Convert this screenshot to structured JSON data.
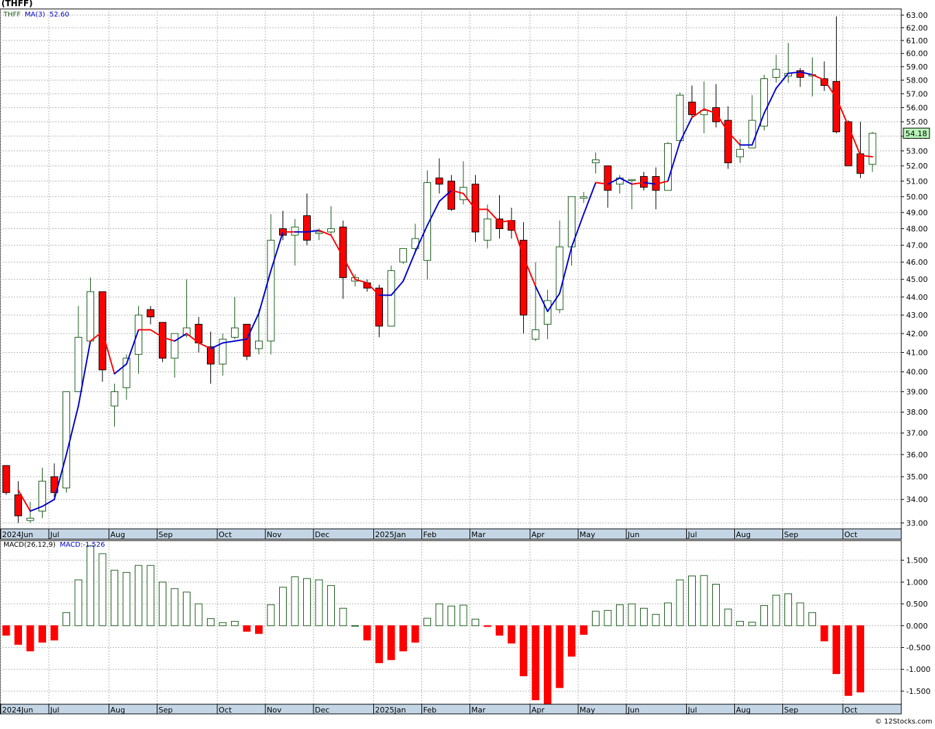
{
  "title": "(THFF)",
  "credit": "© 12Stocks.com",
  "price_label": "54.18",
  "colors": {
    "up": "#1a5c1a",
    "down": "#ff0000",
    "ma_up": "#0000cc",
    "ma_down": "#ff0000",
    "grid": "#b4b4b4",
    "axis_band": "#c4d6e6",
    "price_box": "#b8f5b8"
  },
  "chart_data": [
    {
      "type": "candlestick",
      "legend": {
        "symbol": "THFF",
        "ma_label": "MA(3)",
        "ma_value": "52.60"
      },
      "y_ticks": [
        "63.00",
        "62.00",
        "61.00",
        "60.00",
        "59.00",
        "58.00",
        "57.00",
        "56.00",
        "55.00",
        "54.00",
        "53.00",
        "52.00",
        "51.00",
        "50.00",
        "49.00",
        "48.00",
        "47.00",
        "46.00",
        "45.00",
        "44.00",
        "43.00",
        "42.00",
        "41.00",
        "40.00",
        "39.00",
        "38.00",
        "37.00",
        "36.00",
        "35.00",
        "34.00",
        "33.00"
      ],
      "y_scale": "log",
      "ylim": [
        32.75,
        63.5
      ],
      "x_labels": [
        {
          "label": "2024Jun",
          "week": 0
        },
        {
          "label": "Jul",
          "week": 4
        },
        {
          "label": "Aug",
          "week": 9
        },
        {
          "label": "Sep",
          "week": 13
        },
        {
          "label": "Oct",
          "week": 18
        },
        {
          "label": "Nov",
          "week": 22
        },
        {
          "label": "Dec",
          "week": 26
        },
        {
          "label": "2025Jan",
          "week": 31
        },
        {
          "label": "Feb",
          "week": 35
        },
        {
          "label": "Mar",
          "week": 39
        },
        {
          "label": "Apr",
          "week": 44
        },
        {
          "label": "May",
          "week": 48
        },
        {
          "label": "Jun",
          "week": 52
        },
        {
          "label": "Jul",
          "week": 57
        },
        {
          "label": "Aug",
          "week": 61
        },
        {
          "label": "Sep",
          "week": 65
        },
        {
          "label": "Oct",
          "week": 70
        }
      ],
      "candles": [
        {
          "o": 35.5,
          "h": 35.5,
          "l": 34.2,
          "c": 34.3
        },
        {
          "o": 34.2,
          "h": 34.8,
          "l": 33.0,
          "c": 33.3
        },
        {
          "o": 33.1,
          "h": 33.9,
          "l": 33.0,
          "c": 33.2
        },
        {
          "o": 33.5,
          "h": 35.4,
          "l": 33.2,
          "c": 34.8
        },
        {
          "o": 35.0,
          "h": 35.6,
          "l": 34.1,
          "c": 34.3
        },
        {
          "o": 34.5,
          "h": 39.0,
          "l": 34.3,
          "c": 39.0
        },
        {
          "o": 39.0,
          "h": 43.5,
          "l": 39.0,
          "c": 41.8
        },
        {
          "o": 41.6,
          "h": 45.1,
          "l": 41.5,
          "c": 44.3
        },
        {
          "o": 44.3,
          "h": 44.3,
          "l": 39.5,
          "c": 40.1
        },
        {
          "o": 38.3,
          "h": 39.4,
          "l": 37.3,
          "c": 39.0
        },
        {
          "o": 39.2,
          "h": 40.9,
          "l": 38.6,
          "c": 40.7
        },
        {
          "o": 40.9,
          "h": 43.5,
          "l": 39.9,
          "c": 43.0
        },
        {
          "o": 43.3,
          "h": 43.5,
          "l": 42.5,
          "c": 42.9
        },
        {
          "o": 42.6,
          "h": 42.6,
          "l": 40.5,
          "c": 40.7
        },
        {
          "o": 40.7,
          "h": 42.0,
          "l": 39.7,
          "c": 42.0
        },
        {
          "o": 41.9,
          "h": 45.0,
          "l": 41.8,
          "c": 42.3
        },
        {
          "o": 42.5,
          "h": 42.9,
          "l": 41.0,
          "c": 41.5
        },
        {
          "o": 41.3,
          "h": 42.1,
          "l": 39.4,
          "c": 40.4
        },
        {
          "o": 40.4,
          "h": 42.0,
          "l": 39.8,
          "c": 41.7
        },
        {
          "o": 41.8,
          "h": 44.0,
          "l": 41.7,
          "c": 42.3
        },
        {
          "o": 42.5,
          "h": 42.5,
          "l": 40.6,
          "c": 40.8
        },
        {
          "o": 41.2,
          "h": 43.3,
          "l": 40.9,
          "c": 41.6
        },
        {
          "o": 41.6,
          "h": 48.9,
          "l": 40.9,
          "c": 47.3
        },
        {
          "o": 48.0,
          "h": 49.1,
          "l": 47.3,
          "c": 47.6
        },
        {
          "o": 47.6,
          "h": 48.6,
          "l": 45.8,
          "c": 48.1
        },
        {
          "o": 48.8,
          "h": 50.2,
          "l": 47.0,
          "c": 47.3
        },
        {
          "o": 47.7,
          "h": 48.0,
          "l": 47.3,
          "c": 47.8
        },
        {
          "o": 47.8,
          "h": 49.4,
          "l": 47.6,
          "c": 48.0
        },
        {
          "o": 48.1,
          "h": 48.5,
          "l": 43.9,
          "c": 45.1
        },
        {
          "o": 44.9,
          "h": 45.3,
          "l": 44.6,
          "c": 45.1
        },
        {
          "o": 44.8,
          "h": 45.0,
          "l": 44.3,
          "c": 44.5
        },
        {
          "o": 44.5,
          "h": 44.7,
          "l": 41.8,
          "c": 42.4
        },
        {
          "o": 42.4,
          "h": 45.8,
          "l": 42.4,
          "c": 45.5
        },
        {
          "o": 46.0,
          "h": 46.8,
          "l": 45.9,
          "c": 46.8
        },
        {
          "o": 46.8,
          "h": 48.3,
          "l": 46.5,
          "c": 47.4
        },
        {
          "o": 46.1,
          "h": 51.7,
          "l": 45.0,
          "c": 50.9
        },
        {
          "o": 51.2,
          "h": 52.5,
          "l": 50.2,
          "c": 50.8
        },
        {
          "o": 51.0,
          "h": 51.4,
          "l": 49.1,
          "c": 49.2
        },
        {
          "o": 49.8,
          "h": 52.3,
          "l": 49.5,
          "c": 50.6
        },
        {
          "o": 50.8,
          "h": 51.4,
          "l": 47.2,
          "c": 47.8
        },
        {
          "o": 47.3,
          "h": 49.5,
          "l": 46.8,
          "c": 48.6
        },
        {
          "o": 48.6,
          "h": 50.1,
          "l": 47.4,
          "c": 48.0
        },
        {
          "o": 48.5,
          "h": 49.3,
          "l": 47.4,
          "c": 47.9
        },
        {
          "o": 47.3,
          "h": 48.4,
          "l": 42.0,
          "c": 43.0
        },
        {
          "o": 41.7,
          "h": 46.0,
          "l": 41.6,
          "c": 42.2
        },
        {
          "o": 42.5,
          "h": 44.4,
          "l": 41.7,
          "c": 43.8
        },
        {
          "o": 43.3,
          "h": 48.5,
          "l": 43.1,
          "c": 46.9
        },
        {
          "o": 46.9,
          "h": 49.8,
          "l": 45.8,
          "c": 50.0
        },
        {
          "o": 49.9,
          "h": 50.3,
          "l": 49.6,
          "c": 50.0
        },
        {
          "o": 52.2,
          "h": 52.9,
          "l": 51.5,
          "c": 52.4
        },
        {
          "o": 52.0,
          "h": 52.0,
          "l": 49.3,
          "c": 50.4
        },
        {
          "o": 50.8,
          "h": 51.4,
          "l": 50.2,
          "c": 51.2
        },
        {
          "o": 51.1,
          "h": 51.0,
          "l": 49.2,
          "c": 51.1
        },
        {
          "o": 51.3,
          "h": 51.6,
          "l": 50.4,
          "c": 50.6
        },
        {
          "o": 51.3,
          "h": 51.9,
          "l": 49.2,
          "c": 50.4
        },
        {
          "o": 50.4,
          "h": 53.6,
          "l": 50.4,
          "c": 53.5
        },
        {
          "o": 53.7,
          "h": 57.1,
          "l": 53.5,
          "c": 56.9
        },
        {
          "o": 56.4,
          "h": 57.6,
          "l": 55.3,
          "c": 55.5
        },
        {
          "o": 55.5,
          "h": 57.9,
          "l": 54.2,
          "c": 55.8
        },
        {
          "o": 56.0,
          "h": 57.7,
          "l": 54.6,
          "c": 55.0
        },
        {
          "o": 55.1,
          "h": 56.1,
          "l": 51.8,
          "c": 52.2
        },
        {
          "o": 52.6,
          "h": 53.8,
          "l": 52.2,
          "c": 53.1
        },
        {
          "o": 53.2,
          "h": 56.9,
          "l": 53.2,
          "c": 55.1
        },
        {
          "o": 54.7,
          "h": 58.4,
          "l": 54.4,
          "c": 58.1
        },
        {
          "o": 58.2,
          "h": 59.9,
          "l": 57.8,
          "c": 58.8
        },
        {
          "o": 58.3,
          "h": 60.8,
          "l": 57.8,
          "c": 58.5
        },
        {
          "o": 58.7,
          "h": 58.9,
          "l": 57.5,
          "c": 58.2
        },
        {
          "o": 58.3,
          "h": 59.7,
          "l": 56.8,
          "c": 58.4
        },
        {
          "o": 58.1,
          "h": 59.4,
          "l": 57.2,
          "c": 57.6
        },
        {
          "o": 57.9,
          "h": 62.9,
          "l": 54.2,
          "c": 54.3
        },
        {
          "o": 55.0,
          "h": 55.1,
          "l": 52.1,
          "c": 52.0
        },
        {
          "o": 52.8,
          "h": 55.0,
          "l": 51.2,
          "c": 51.5
        },
        {
          "o": 52.1,
          "h": 54.3,
          "l": 51.6,
          "c": 54.2
        }
      ],
      "ma_start_week": 1,
      "ma": [
        34.4,
        33.5,
        33.7,
        34.0,
        36.0,
        38.3,
        41.6,
        42.1,
        39.9,
        40.4,
        42.2,
        42.2,
        41.8,
        41.6,
        42.0,
        41.5,
        41.2,
        41.5,
        41.6,
        41.7,
        43.1,
        45.5,
        47.8,
        47.8,
        47.8,
        47.9,
        47.6,
        46.3,
        45.0,
        44.8,
        44.1,
        44.1,
        44.9,
        46.6,
        48.2,
        49.7,
        50.4,
        50.2,
        49.2,
        49.2,
        48.4,
        48.5,
        46.3,
        44.6,
        43.2,
        44.2,
        46.9,
        48.9,
        50.9,
        50.8,
        51.2,
        50.8,
        50.9,
        50.8,
        51.0,
        53.6,
        55.3,
        55.9,
        55.6,
        54.3,
        53.4,
        53.4,
        55.6,
        57.4,
        58.5,
        58.6,
        58.4,
        58.0,
        56.7,
        54.7,
        52.7,
        52.6
      ],
      "ma_colors": [
        "d",
        "d",
        "u",
        "u",
        "u",
        "u",
        "u",
        "d",
        "d",
        "u",
        "u",
        "d",
        "d",
        "d",
        "u",
        "d",
        "d",
        "u",
        "u",
        "u",
        "u",
        "u",
        "u",
        "d",
        "u",
        "u",
        "d",
        "d",
        "d",
        "d",
        "d",
        "u",
        "u",
        "u",
        "u",
        "u",
        "u",
        "d",
        "d",
        "d",
        "d",
        "d",
        "d",
        "d",
        "u",
        "u",
        "u",
        "u",
        "u",
        "d",
        "u",
        "u",
        "d",
        "u",
        "d",
        "u",
        "u",
        "d",
        "d",
        "d",
        "d",
        "u",
        "u",
        "u",
        "u",
        "u",
        "u",
        "d",
        "d",
        "d",
        "d",
        "d"
      ]
    },
    {
      "type": "bar",
      "legend": {
        "label": "MACD(26,12,9)",
        "value_label": "MACD:-1.526"
      },
      "y_ticks": [
        "1.500",
        "1.000",
        "0.500",
        "0.000",
        "-0.500",
        "-1.000",
        "-1.500"
      ],
      "ylim": [
        -1.8,
        1.95
      ],
      "values": [
        -0.22,
        -0.43,
        -0.58,
        -0.38,
        -0.33,
        0.3,
        1.05,
        1.83,
        1.65,
        1.27,
        1.22,
        1.38,
        1.38,
        1.0,
        0.85,
        0.77,
        0.5,
        0.16,
        0.07,
        0.1,
        -0.13,
        -0.18,
        0.48,
        0.88,
        1.12,
        1.08,
        1.05,
        0.92,
        0.4,
        0.0,
        -0.33,
        -0.85,
        -0.78,
        -0.58,
        -0.38,
        0.17,
        0.5,
        0.45,
        0.47,
        0.15,
        -0.02,
        -0.22,
        -0.4,
        -1.15,
        -1.7,
        -1.8,
        -1.42,
        -0.7,
        -0.2,
        0.33,
        0.35,
        0.48,
        0.5,
        0.4,
        0.26,
        0.52,
        1.05,
        1.14,
        1.15,
        0.95,
        0.38,
        0.1,
        0.08,
        0.46,
        0.7,
        0.73,
        0.52,
        0.3,
        -0.35,
        -1.1,
        -1.6,
        -1.52
      ]
    }
  ]
}
